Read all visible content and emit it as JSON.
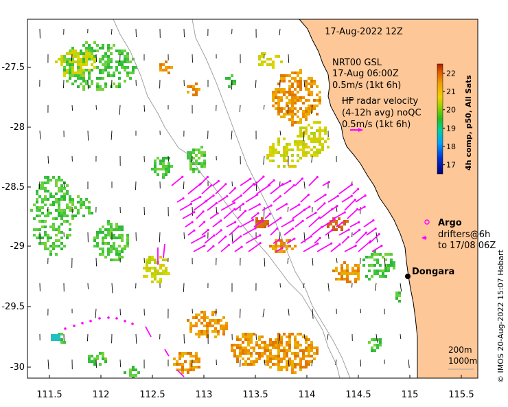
{
  "map": {
    "title": "17-Aug-2022 12Z",
    "x_ticks": [
      "111.5",
      "112",
      "112.5",
      "113",
      "113.5",
      "114",
      "114.5",
      "115",
      "115.5"
    ],
    "y_ticks": [
      "-27.5",
      "-28",
      "-28.5",
      "-29",
      "-29.5",
      "-30"
    ],
    "colors": {
      "land": "#fdc797",
      "coast": "#000000",
      "isobath": "#a0a0a0",
      "model_arrow": "#000000",
      "radar_arrow": "#ff00ff",
      "argo": "#ff00ff"
    }
  },
  "legend": {
    "model_line1": "NRT00 GSL",
    "model_line2": "17-Aug 06:00Z",
    "model_line3": "0.5m/s (1kt 6h)",
    "radar_line1": "HF radar velocity",
    "radar_line2": "(4-12h avg) noQC",
    "radar_line3": "0.5m/s (1kt 6h)",
    "argo_label": "Argo",
    "drifter_line1": "drifters@6h",
    "drifter_line2": "to 17/08 06Z"
  },
  "place": {
    "name": "Dongara"
  },
  "isobaths": {
    "label1": "200m",
    "label2": "1000m"
  },
  "colorbar": {
    "ticks": [
      "22",
      "21",
      "20",
      "19",
      "18",
      "17"
    ],
    "range": [
      16.5,
      22.5
    ],
    "label": "4h comp, p50, All Sats"
  },
  "credit": "© IMOS 20-Aug-2022 15:07 Hobart"
}
